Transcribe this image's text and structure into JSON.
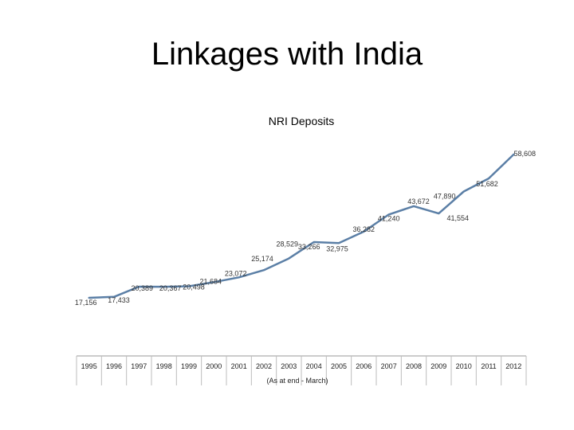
{
  "slide": {
    "title": "Linkages with India"
  },
  "chart_data": {
    "type": "line",
    "title": "NRI Deposits",
    "xlabel": "(As at end - March)",
    "ylabel": "",
    "grid": false,
    "legend": "none",
    "line_color": "#5b7fa6",
    "categories": [
      "1995",
      "1996",
      "1997",
      "1998",
      "1999",
      "2000",
      "2001",
      "2002",
      "2003",
      "2004",
      "2005",
      "2006",
      "2007",
      "2008",
      "2009",
      "2010",
      "2011",
      "2012"
    ],
    "values": [
      17156,
      17433,
      20389,
      20367,
      20498,
      21684,
      23072,
      25174,
      28529,
      33266,
      32975,
      36282,
      41240,
      43672,
      41554,
      47890,
      51682,
      58608
    ],
    "data_labels": [
      "17,156",
      "17,433",
      "20,389",
      "20,367",
      "20,498",
      "21,684",
      "23,072",
      "25,174",
      "28,529",
      "33,266",
      "32,975",
      "36,282",
      "41,240",
      "43,672",
      "41,554",
      "47,890",
      "51,682",
      "58,608"
    ]
  }
}
